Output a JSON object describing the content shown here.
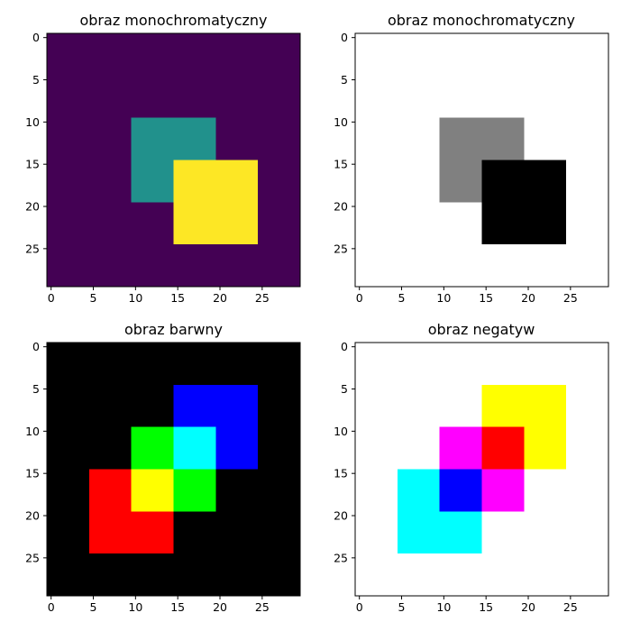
{
  "chart_data": [
    {
      "type": "heatmap",
      "title": "obraz monochromatyczny",
      "xlim": [
        -0.5,
        29.5
      ],
      "ylim": [
        29.5,
        -0.5
      ],
      "xticks": [
        0,
        5,
        10,
        15,
        20,
        25
      ],
      "yticks": [
        0,
        5,
        10,
        15,
        20,
        25
      ],
      "grid": false,
      "background": "#440154",
      "rects": [
        {
          "x": [
            10,
            19
          ],
          "y": [
            10,
            19
          ],
          "color": "#21918c"
        },
        {
          "x": [
            15,
            24
          ],
          "y": [
            15,
            24
          ],
          "color": "#fde725"
        }
      ]
    },
    {
      "type": "heatmap",
      "title": "obraz monochromatyczny",
      "xlim": [
        -0.5,
        29.5
      ],
      "ylim": [
        29.5,
        -0.5
      ],
      "xticks": [
        0,
        5,
        10,
        15,
        20,
        25
      ],
      "yticks": [
        0,
        5,
        10,
        15,
        20,
        25
      ],
      "grid": false,
      "background": "#ffffff",
      "rects": [
        {
          "x": [
            10,
            19
          ],
          "y": [
            10,
            19
          ],
          "color": "#808080"
        },
        {
          "x": [
            15,
            24
          ],
          "y": [
            15,
            24
          ],
          "color": "#000000"
        }
      ]
    },
    {
      "type": "heatmap",
      "title": "obraz barwny",
      "xlim": [
        -0.5,
        29.5
      ],
      "ylim": [
        29.5,
        -0.5
      ],
      "xticks": [
        0,
        5,
        10,
        15,
        20,
        25
      ],
      "yticks": [
        0,
        5,
        10,
        15,
        20,
        25
      ],
      "grid": false,
      "background": "#000000",
      "rects": [
        {
          "x": [
            5,
            14
          ],
          "y": [
            15,
            24
          ],
          "color": "#ff0000"
        },
        {
          "x": [
            10,
            19
          ],
          "y": [
            10,
            19
          ],
          "color": "#00ff00"
        },
        {
          "x": [
            15,
            24
          ],
          "y": [
            5,
            14
          ],
          "color": "#0000ff"
        },
        {
          "x": [
            10,
            14
          ],
          "y": [
            15,
            19
          ],
          "color": "#ffff00"
        },
        {
          "x": [
            15,
            19
          ],
          "y": [
            10,
            14
          ],
          "color": "#00ffff"
        }
      ]
    },
    {
      "type": "heatmap",
      "title": "obraz negatyw",
      "xlim": [
        -0.5,
        29.5
      ],
      "ylim": [
        29.5,
        -0.5
      ],
      "xticks": [
        0,
        5,
        10,
        15,
        20,
        25
      ],
      "yticks": [
        0,
        5,
        10,
        15,
        20,
        25
      ],
      "grid": false,
      "background": "#ffffff",
      "rects": [
        {
          "x": [
            5,
            14
          ],
          "y": [
            15,
            24
          ],
          "color": "#00ffff"
        },
        {
          "x": [
            10,
            19
          ],
          "y": [
            10,
            19
          ],
          "color": "#ff00ff"
        },
        {
          "x": [
            15,
            24
          ],
          "y": [
            5,
            14
          ],
          "color": "#ffff00"
        },
        {
          "x": [
            10,
            14
          ],
          "y": [
            15,
            19
          ],
          "color": "#0000ff"
        },
        {
          "x": [
            15,
            19
          ],
          "y": [
            10,
            14
          ],
          "color": "#ff0000"
        }
      ]
    }
  ]
}
